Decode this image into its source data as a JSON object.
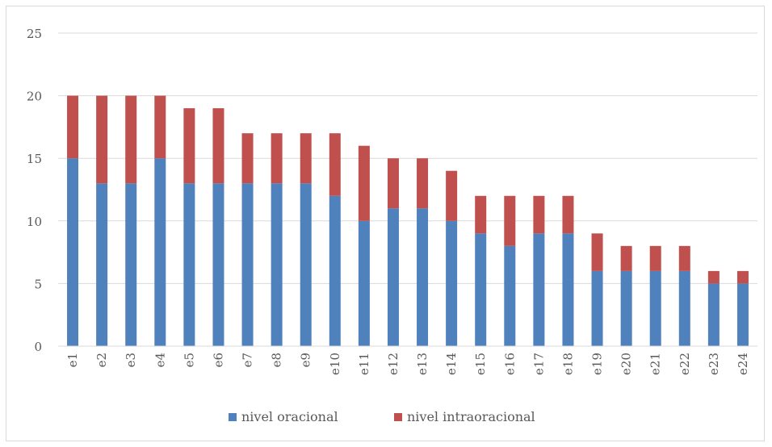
{
  "chart_data": {
    "type": "bar",
    "stacked": true,
    "title": "",
    "xlabel": "",
    "ylabel": "",
    "ylim": [
      0,
      25
    ],
    "yticks": [
      0,
      5,
      10,
      15,
      20,
      25
    ],
    "grid": true,
    "legend_position": "bottom",
    "categories": [
      "e1",
      "e2",
      "e3",
      "e4",
      "e5",
      "e6",
      "e7",
      "e8",
      "e9",
      "e10",
      "e11",
      "e12",
      "e13",
      "e14",
      "e15",
      "e16",
      "e17",
      "e18",
      "e19",
      "e20",
      "e21",
      "e22",
      "e23",
      "e24"
    ],
    "series": [
      {
        "name": "nivel oracional",
        "color": "#4f81bd",
        "values": [
          15,
          13,
          13,
          15,
          13,
          13,
          13,
          13,
          13,
          12,
          10,
          11,
          11,
          10,
          9,
          8,
          9,
          9,
          6,
          6,
          6,
          6,
          5,
          5
        ]
      },
      {
        "name": "nivel intraoracional",
        "color": "#c0504d",
        "values": [
          5,
          7,
          7,
          5,
          6,
          6,
          4,
          4,
          4,
          5,
          6,
          4,
          4,
          4,
          3,
          4,
          3,
          3,
          3,
          2,
          2,
          2,
          1,
          1
        ]
      }
    ]
  }
}
